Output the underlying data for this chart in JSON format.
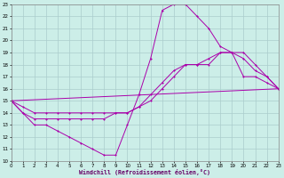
{
  "bg_color": "#cceee8",
  "grid_color": "#aacccc",
  "line_color": "#aa00aa",
  "xlabel": "Windchill (Refroidissement éolien,°C)",
  "xlim": [
    0,
    23
  ],
  "ylim": [
    10,
    23
  ],
  "xticks": [
    0,
    1,
    2,
    3,
    4,
    5,
    6,
    7,
    8,
    9,
    10,
    11,
    12,
    13,
    14,
    15,
    16,
    17,
    18,
    19,
    20,
    21,
    22,
    23
  ],
  "yticks": [
    10,
    11,
    12,
    13,
    14,
    15,
    16,
    17,
    18,
    19,
    20,
    21,
    22,
    23
  ],
  "curve1_x": [
    0,
    1,
    2,
    3,
    4,
    5,
    6,
    7,
    8,
    9,
    10,
    11,
    12,
    13,
    14,
    15,
    16,
    17,
    18,
    19,
    20,
    21,
    22,
    23
  ],
  "curve1_y": [
    15,
    14,
    13,
    13,
    12.5,
    12,
    11.5,
    11,
    10.5,
    10.5,
    13,
    15.5,
    18.5,
    22.5,
    23,
    23,
    22,
    21,
    19.5,
    19,
    19,
    18,
    17,
    16
  ],
  "curve2_x": [
    0,
    23
  ],
  "curve2_y": [
    15,
    16
  ],
  "curve3_x": [
    0,
    1,
    2,
    3,
    4,
    5,
    6,
    7,
    8,
    9,
    10,
    11,
    12,
    13,
    14,
    15,
    16,
    17,
    18,
    19,
    20,
    21,
    22,
    23
  ],
  "curve3_y": [
    15,
    14,
    13.5,
    13.5,
    13.5,
    13.5,
    13.5,
    13.5,
    13.5,
    14,
    14,
    14.5,
    15.5,
    16.5,
    17.5,
    18,
    18,
    18.5,
    19,
    19,
    18.5,
    17.5,
    17,
    16
  ],
  "curve4_x": [
    0,
    1,
    2,
    3,
    4,
    5,
    6,
    7,
    8,
    9,
    10,
    11,
    12,
    13,
    14,
    15,
    16,
    17,
    18,
    19,
    20,
    21,
    22,
    23
  ],
  "curve4_y": [
    15,
    14.5,
    14,
    14,
    14,
    14,
    14,
    14,
    14,
    14,
    14,
    14.5,
    15,
    16,
    17,
    18,
    18,
    18,
    19,
    19,
    17,
    17,
    16.5,
    16
  ]
}
